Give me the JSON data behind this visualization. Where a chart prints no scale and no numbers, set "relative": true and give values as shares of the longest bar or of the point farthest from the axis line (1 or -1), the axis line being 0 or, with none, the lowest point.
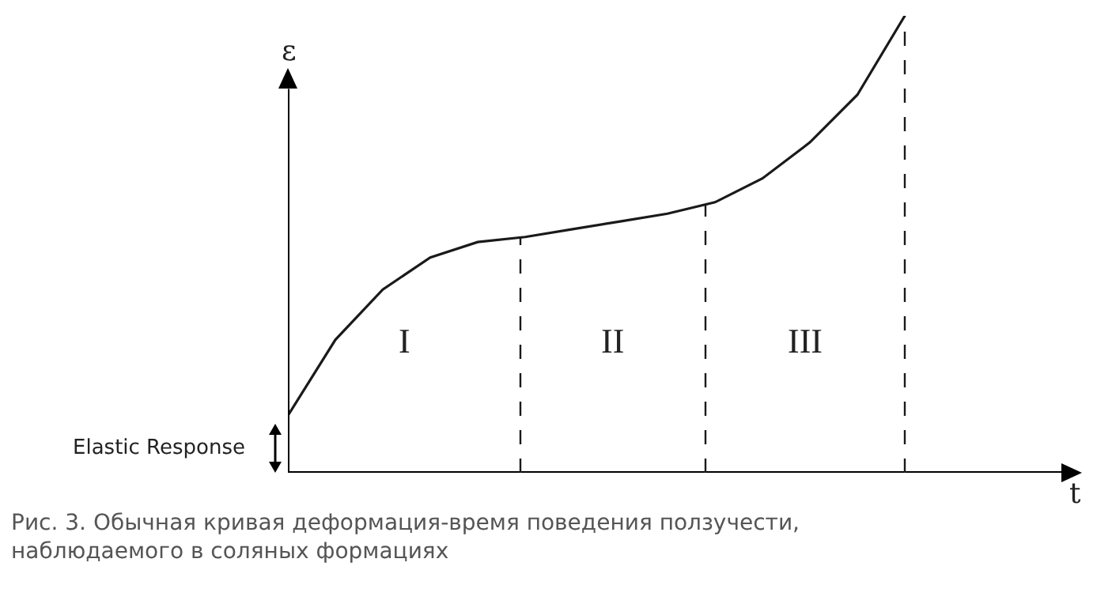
{
  "chart_data": {
    "type": "line",
    "relative": true,
    "xlabel": "t",
    "ylabel": "ε",
    "categories": [
      null,
      null,
      null,
      null,
      null,
      null,
      null,
      null,
      null,
      null,
      null,
      null,
      null,
      null
    ],
    "series": [
      {
        "color": "#1a1a1a",
        "values": [
          0.125,
          0.291,
          0.401,
          0.471,
          0.505,
          0.516,
          0.533,
          0.55,
          0.567,
          0.592,
          0.644,
          0.723,
          0.827,
          1
        ]
      }
    ],
    "annotations": [
      "I",
      "II",
      "III",
      "Elastic Response",
      "Рис. 3. Обычная кривая деформация-время поведения ползучести,\nнаблюдаемого в соляных формациях"
    ],
    "marker": "none",
    "line_style": "solid"
  }
}
